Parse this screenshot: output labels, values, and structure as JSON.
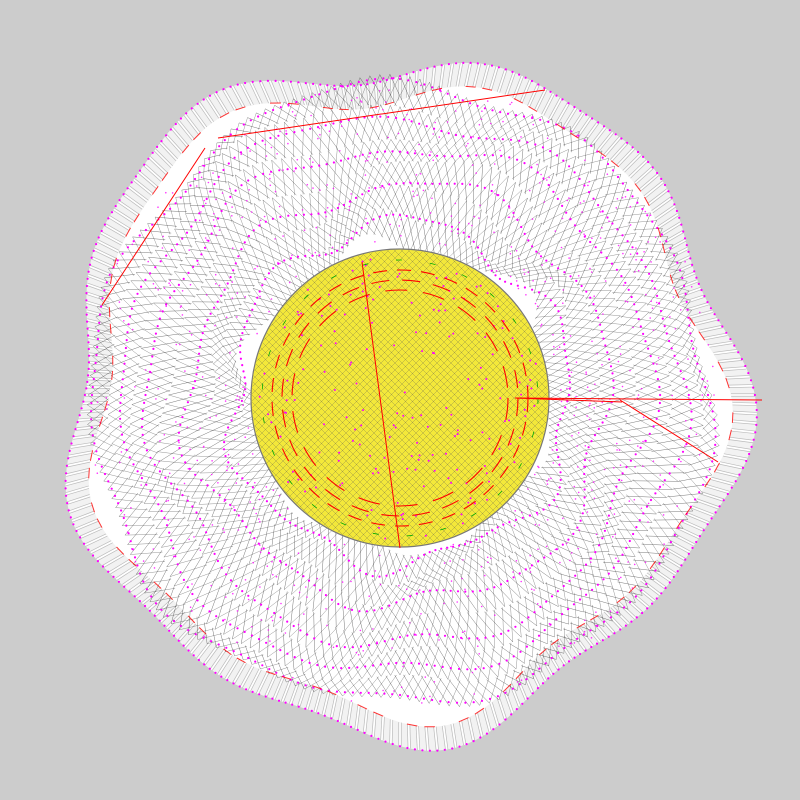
{
  "colors": {
    "background": "#cccccc",
    "outer_spokes": "#ffffff",
    "outer_spokes_edge": "#bbbbbb",
    "boundary_dots": "#ff00ff",
    "mesh_lines": "#000000",
    "band_fill": "#ffffff",
    "core_fill": "#f3e83a",
    "core_edge": "#777777",
    "constraint_red": "#ff0000",
    "constraint_green": "#00aa00"
  },
  "structure": {
    "boundary_rings": 5,
    "core": "yellow-disc"
  }
}
